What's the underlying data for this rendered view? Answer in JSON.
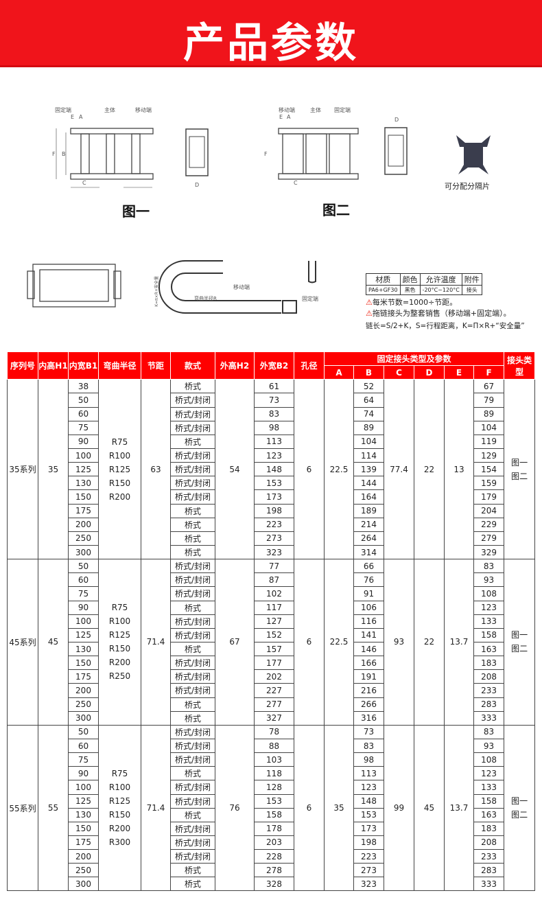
{
  "banner": {
    "title": "产品参数"
  },
  "diagrams": {
    "fig1": {
      "left": "固定端",
      "mid": "主体",
      "right": "移动端",
      "caption": "图一"
    },
    "fig2": {
      "left": "移动端",
      "mid": "主体",
      "right": "固定端",
      "caption": "图二"
    },
    "dims": {
      "E": "E",
      "A": "A",
      "F": "F",
      "B": "B",
      "C": "C",
      "D": "D"
    },
    "separator": {
      "caption": "可分配分隔片"
    },
    "side": {
      "moving": "移动端",
      "fixed": "固定端",
      "radius": "弯曲半径R",
      "k": "K=π×R+安全量"
    }
  },
  "spec": {
    "headers": [
      "材质",
      "颜色",
      "允许温度",
      "附件"
    ],
    "values": [
      "PA6+GF30",
      "黑色",
      "-20°C~120°C",
      "接头"
    ]
  },
  "notes": [
    "每米节数=1000÷节距。",
    "拖链接头为整套销售（移动端+固定端）。",
    "链长=S/2+K，S=行程距离，K=Π×R+“安全量”"
  ],
  "table": {
    "headers": [
      "序列号",
      "内高H1",
      "内宽B1",
      "弯曲半径",
      "节距",
      "款式",
      "外高H2",
      "外宽B2",
      "孔径",
      "固定接头类型及参数",
      "接头类型"
    ],
    "sub_headers": [
      "A",
      "B",
      "C",
      "D",
      "E",
      "F"
    ],
    "groups": [
      {
        "series": "35系列",
        "h1": "35",
        "b1": [
          "38",
          "50",
          "60",
          "75",
          "90",
          "100",
          "125",
          "130",
          "150",
          "175",
          "200",
          "250",
          "300"
        ],
        "radius": [
          "R75",
          "R100",
          "R125",
          "R150",
          "R200"
        ],
        "pitch": "63",
        "style": [
          "桥式",
          "桥式/封闭",
          "桥式/封闭",
          "桥式/封闭",
          "桥式",
          "桥式/封闭",
          "桥式/封闭",
          "桥式/封闭",
          "桥式/封闭",
          "桥式",
          "桥式",
          "桥式",
          "桥式"
        ],
        "h2": "54",
        "b2": [
          "61",
          "73",
          "83",
          "98",
          "113",
          "123",
          "148",
          "153",
          "173",
          "198",
          "223",
          "273",
          "323"
        ],
        "hole": "6",
        "A": "22.5",
        "B": [
          "52",
          "64",
          "74",
          "89",
          "104",
          "114",
          "139",
          "144",
          "164",
          "189",
          "214",
          "264",
          "314"
        ],
        "C": "77.4",
        "D": "22",
        "E": "13",
        "F": [
          "67",
          "79",
          "89",
          "104",
          "119",
          "129",
          "154",
          "159",
          "179",
          "204",
          "229",
          "279",
          "329"
        ],
        "type": [
          "图一",
          "图二"
        ]
      },
      {
        "series": "45系列",
        "h1": "45",
        "b1": [
          "50",
          "60",
          "75",
          "90",
          "100",
          "125",
          "130",
          "150",
          "175",
          "200",
          "250",
          "300"
        ],
        "radius": [
          "R75",
          "R100",
          "R125",
          "R150",
          "R200",
          "R250"
        ],
        "pitch": "71.4",
        "style": [
          "桥式/封闭",
          "桥式/封闭",
          "桥式/封闭",
          "桥式",
          "桥式/封闭",
          "桥式/封闭",
          "桥式",
          "桥式/封闭",
          "桥式/封闭",
          "桥式/封闭",
          "桥式",
          "桥式"
        ],
        "h2": "67",
        "b2": [
          "77",
          "87",
          "102",
          "117",
          "127",
          "152",
          "157",
          "177",
          "202",
          "227",
          "277",
          "327"
        ],
        "hole": "6",
        "A": "22.5",
        "B": [
          "66",
          "76",
          "91",
          "106",
          "116",
          "141",
          "146",
          "166",
          "191",
          "216",
          "266",
          "316"
        ],
        "C": "93",
        "D": "22",
        "E": "13.7",
        "F": [
          "83",
          "93",
          "108",
          "123",
          "133",
          "158",
          "163",
          "183",
          "208",
          "233",
          "283",
          "333"
        ],
        "type": [
          "图一",
          "图二"
        ]
      },
      {
        "series": "55系列",
        "h1": "55",
        "b1": [
          "50",
          "60",
          "75",
          "90",
          "100",
          "125",
          "130",
          "150",
          "175",
          "200",
          "250",
          "300"
        ],
        "radius": [
          "R75",
          "R100",
          "R125",
          "R150",
          "R200",
          "R300"
        ],
        "pitch": "71.4",
        "style": [
          "桥式/封闭",
          "桥式/封闭",
          "桥式/封闭",
          "桥式",
          "桥式/封闭",
          "桥式/封闭",
          "桥式",
          "桥式/封闭",
          "桥式/封闭",
          "桥式/封闭",
          "桥式",
          "桥式"
        ],
        "h2": "76",
        "b2": [
          "78",
          "88",
          "103",
          "118",
          "128",
          "153",
          "158",
          "178",
          "203",
          "228",
          "278",
          "328"
        ],
        "hole": "6",
        "A": "35",
        "B": [
          "73",
          "83",
          "98",
          "113",
          "123",
          "148",
          "153",
          "173",
          "198",
          "223",
          "273",
          "323"
        ],
        "C": "99",
        "D": "45",
        "E": "13.7",
        "F": [
          "83",
          "93",
          "108",
          "123",
          "133",
          "158",
          "163",
          "183",
          "208",
          "233",
          "283",
          "333"
        ],
        "type": [
          "图一",
          "图二"
        ]
      }
    ]
  },
  "colors": {
    "header_red": "#ff0000",
    "banner_red": "#f0141b"
  }
}
